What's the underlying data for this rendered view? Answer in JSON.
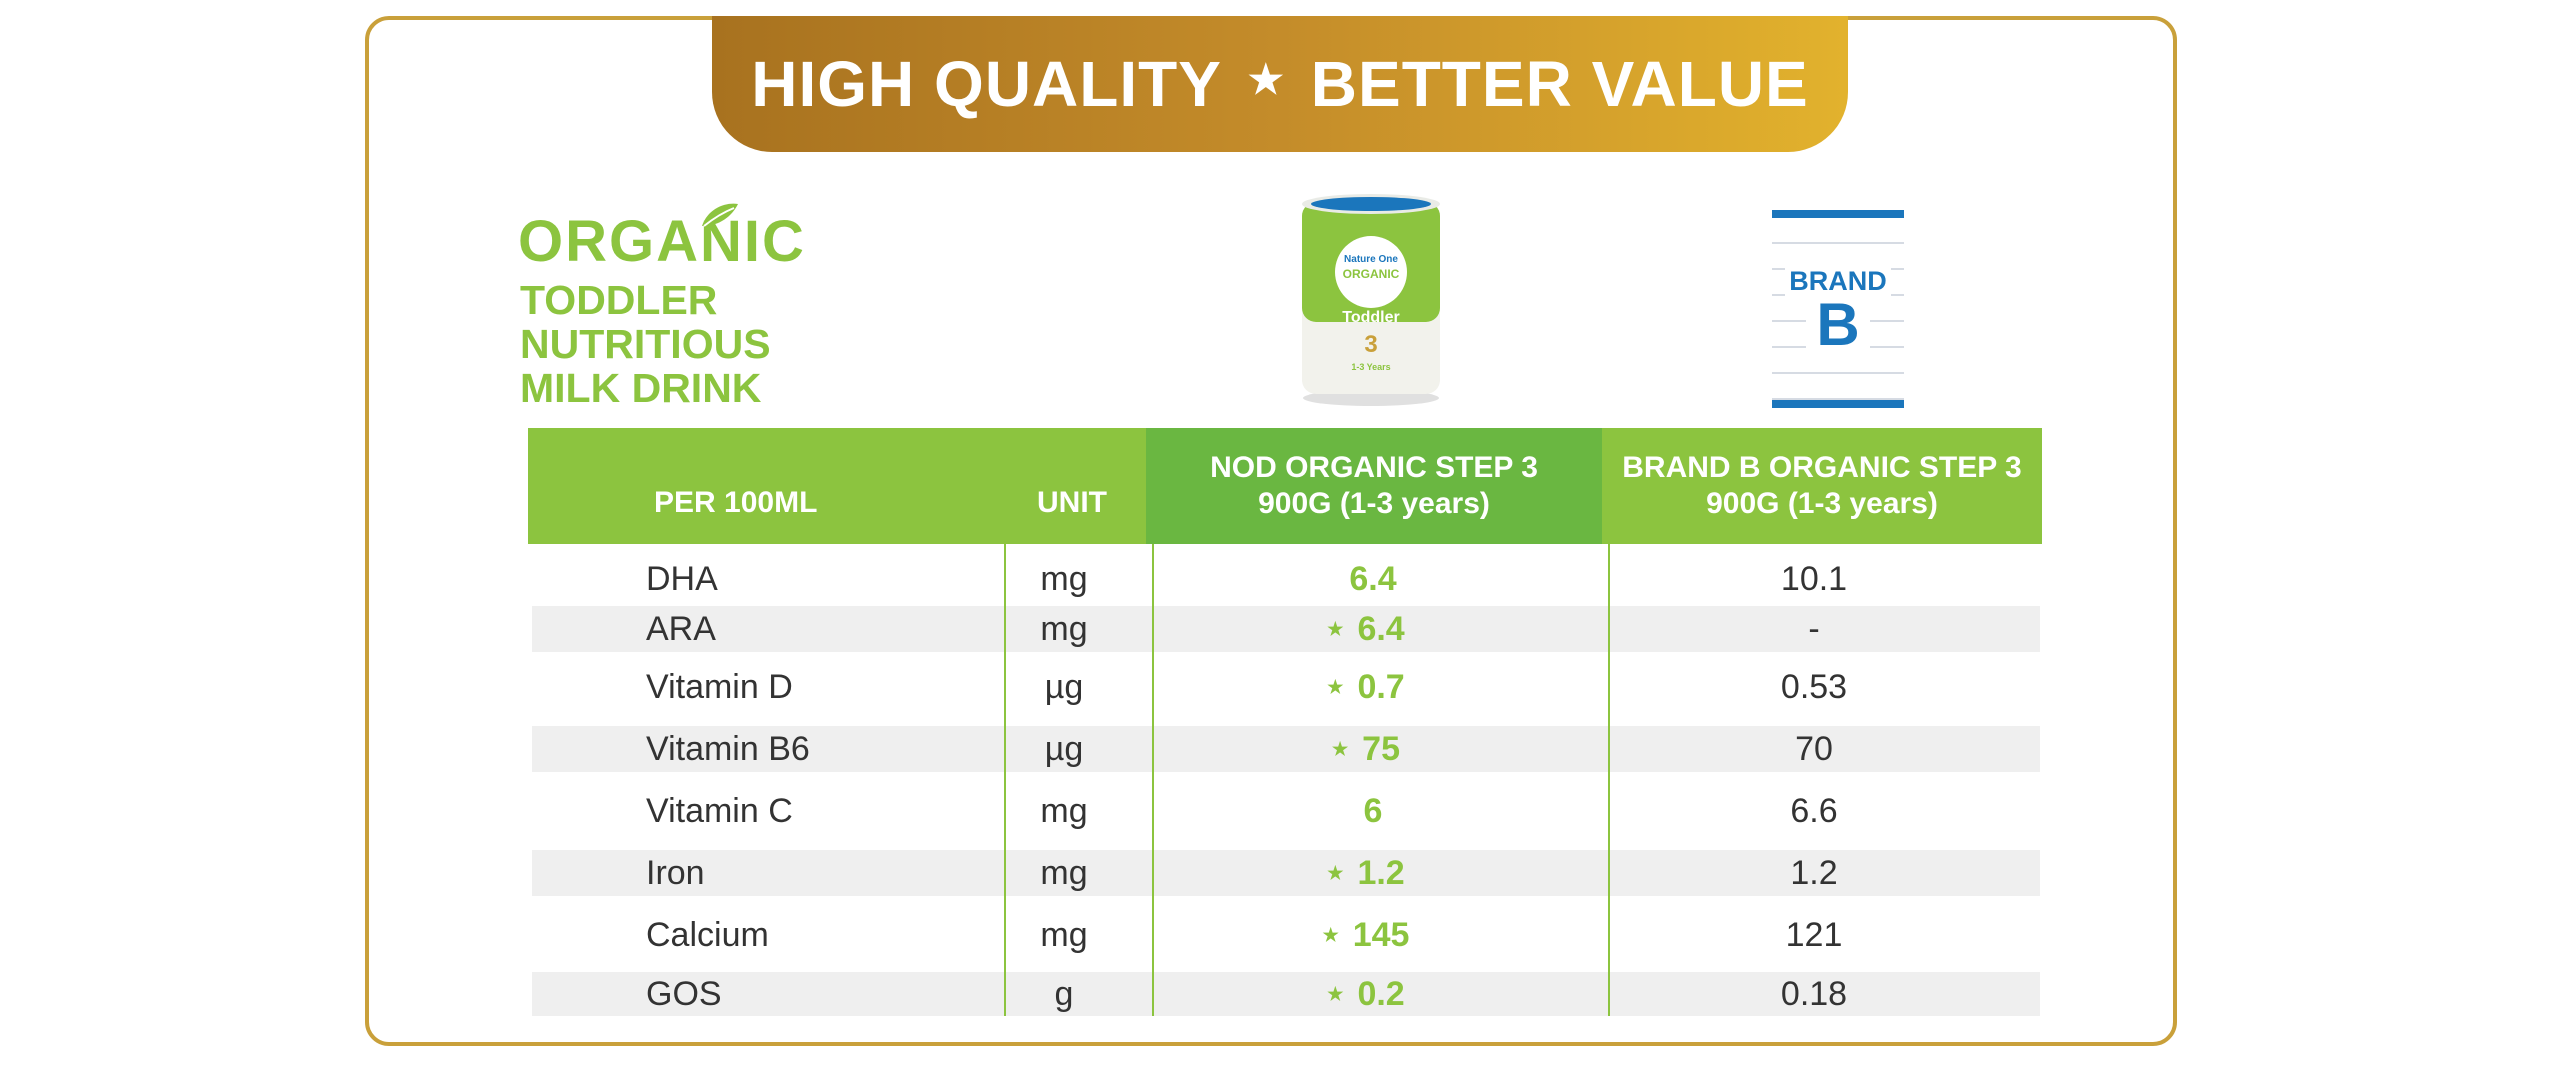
{
  "banner": {
    "left": "HIGH QUALITY",
    "star": "★",
    "right": "BETTER VALUE"
  },
  "product_heading": {
    "organic": "ORGANIC",
    "line1": "TODDLER",
    "line2": "NUTRITIOUS",
    "line3": "MILK DRINK"
  },
  "can": {
    "brand": "Nature One",
    "type": "ORGANIC",
    "name": "Toddler",
    "step": "3",
    "age": "1-3 Years"
  },
  "brand_b": {
    "line1": "BRAND",
    "line2": "B"
  },
  "table": {
    "headers": {
      "per": "PER 100ML",
      "unit": "UNIT",
      "nod": "NOD ORGANIC STEP 3 900G (1-3 years)",
      "brandb": "BRAND B ORGANIC STEP 3 900G (1-3 years)"
    },
    "rows": [
      {
        "nutrient": "DHA",
        "unit": "mg",
        "nod": "6.4",
        "star": "",
        "brandb": "10.1"
      },
      {
        "nutrient": "ARA",
        "unit": "mg",
        "nod": "6.4",
        "star": "★",
        "brandb": "-"
      },
      {
        "nutrient": "Vitamin D",
        "unit": "µg",
        "nod": "0.7",
        "star": "★",
        "brandb": "0.53"
      },
      {
        "nutrient": "Vitamin B6",
        "unit": "µg",
        "nod": "75",
        "star": "★",
        "brandb": "70"
      },
      {
        "nutrient": "Vitamin C",
        "unit": "mg",
        "nod": "6",
        "star": "",
        "brandb": "6.6"
      },
      {
        "nutrient": "Iron",
        "unit": "mg",
        "nod": "1.2",
        "star": "★",
        "brandb": "1.2"
      },
      {
        "nutrient": "Calcium",
        "unit": "mg",
        "nod": "145",
        "star": "★",
        "brandb": "121"
      },
      {
        "nutrient": "GOS",
        "unit": "g",
        "nod": "0.2",
        "star": "★",
        "brandb": "0.18"
      }
    ]
  },
  "colors": {
    "green": "#8cc43f",
    "dark_green": "#6ab741",
    "gold": "#c9a03a",
    "blue": "#1b76bc"
  }
}
